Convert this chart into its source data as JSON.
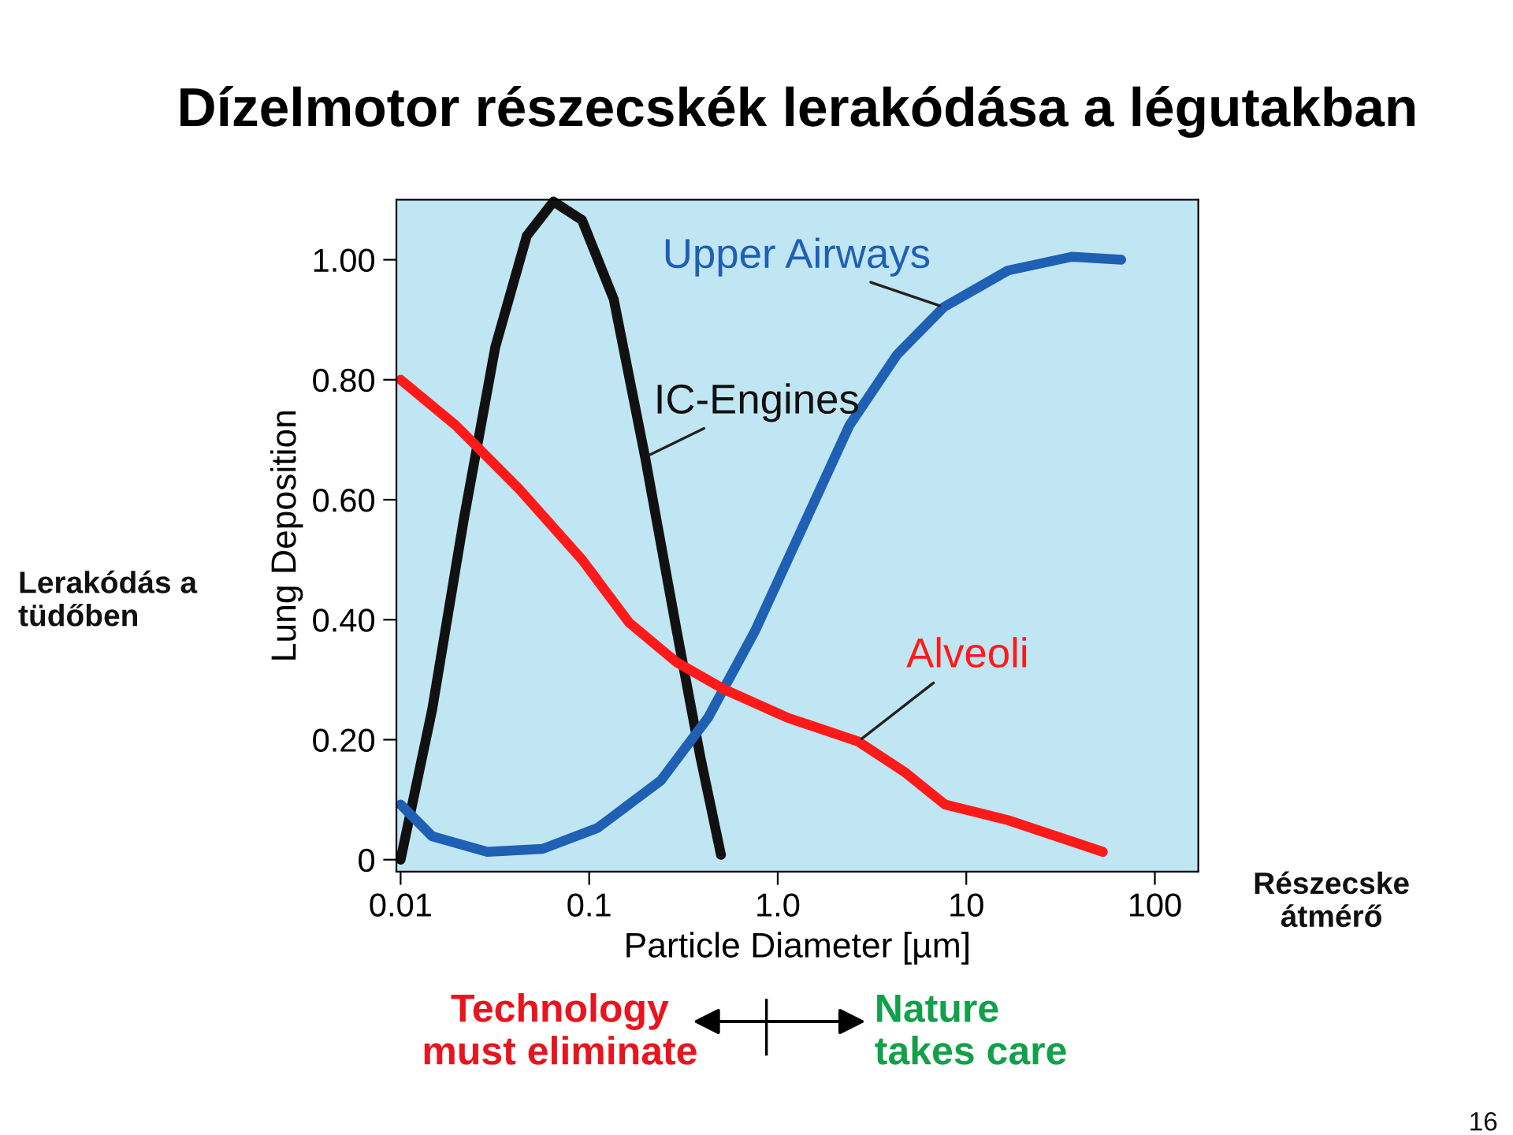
{
  "chart_data": {
    "type": "line",
    "title": "Dízelmotor részecskék lerakódása a légutakban",
    "xlabel": "Particle Diameter [µm]",
    "ylabel": "Lung Deposition",
    "log": "x",
    "xlim": [
      0.0095,
      170
    ],
    "ylim": [
      -0.02,
      1.1
    ],
    "xticks": [
      {
        "value": 0.01,
        "label": "0.01"
      },
      {
        "value": 0.1,
        "label": "0.1"
      },
      {
        "value": 1,
        "label": "1.0"
      },
      10,
      100
    ],
    "yticks": [
      0,
      {
        "value": 0.2,
        "label": "0.20"
      },
      {
        "value": 0.4,
        "label": "0.40"
      },
      {
        "value": 0.6,
        "label": "0.60"
      },
      {
        "value": 0.8,
        "label": "0.80"
      },
      {
        "value": 1,
        "label": "1.00"
      }
    ],
    "grid": false,
    "legend": false,
    "marker": "none",
    "line_style": "solid",
    "series": [
      {
        "name": "IC-Engines",
        "color": "#111111",
        "x": [
          0.01,
          0.0147,
          0.0216,
          0.0318,
          0.0467,
          0.0647,
          0.0917,
          0.135,
          0.198,
          0.291,
          0.389,
          0.5
        ],
        "values": [
          0,
          0.25,
          0.566,
          0.855,
          1.04,
          1.097,
          1.066,
          0.934,
          0.671,
          0.382,
          0.171,
          0.008
        ]
      },
      {
        "name": "Upper Airways",
        "color": "#1f5fb4",
        "x": [
          0.01,
          0.0147,
          0.0288,
          0.0566,
          0.111,
          0.24,
          0.428,
          0.76,
          1.35,
          2.4,
          4.3,
          7.6,
          16.6,
          36.3,
          66.3
        ],
        "values": [
          0.092,
          0.039,
          0.013,
          0.018,
          0.053,
          0.132,
          0.237,
          0.382,
          0.553,
          0.724,
          0.842,
          0.921,
          0.982,
          1.005,
          1.0
        ]
      },
      {
        "name": "Alveoli",
        "color": "#ff1a1a",
        "x": [
          0.01,
          0.0196,
          0.0425,
          0.0917,
          0.163,
          0.291,
          0.519,
          1.12,
          2.67,
          4.76,
          7.7,
          16.6,
          53
        ],
        "values": [
          0.8,
          0.724,
          0.618,
          0.5,
          0.395,
          0.329,
          0.284,
          0.237,
          0.197,
          0.145,
          0.092,
          0.066,
          0.013
        ]
      }
    ],
    "annotations": [
      "Lerakódás a\ntüdőben",
      "Részecske\nátmérő",
      "Technology\nmust eliminate",
      "Nature\ntakes care",
      "16"
    ]
  }
}
